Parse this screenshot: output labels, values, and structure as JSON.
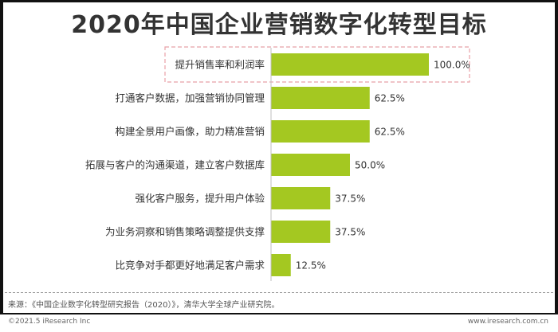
{
  "title": "2020年中国企业营销数字化转型目标",
  "chart_data": {
    "type": "bar",
    "orientation": "horizontal",
    "categories": [
      "提升销售率和利润率",
      "打通客户数据，加强营销协同管理",
      "构建全景用户画像，助力精准营销",
      "拓展与客户的沟通渠道，建立客户数据库",
      "强化客户服务，提升用户体验",
      "为业务洞察和销售策略调整提供支撑",
      "比竞争对手都更好地满足客户需求"
    ],
    "values": [
      100.0,
      62.5,
      62.5,
      50.0,
      37.5,
      37.5,
      12.5
    ],
    "value_labels": [
      "100.0%",
      "62.5%",
      "62.5%",
      "50.0%",
      "37.5%",
      "37.5%",
      "12.5%"
    ],
    "xlim": [
      0,
      100
    ],
    "grid": false,
    "highlighted_category": "提升销售率和利润率",
    "colors": {
      "bar": "#a4c821",
      "axis": "#bfbfbf",
      "highlight_border": "#e8a0a8",
      "text": "#333333"
    }
  },
  "footer": {
    "source": "来源：《中国企业数字化转型研究报告（2020）》，清华大学全球产业研究院。",
    "copyright": "©2021.5 iResearch Inc",
    "website": "www.iresearch.com.cn"
  }
}
